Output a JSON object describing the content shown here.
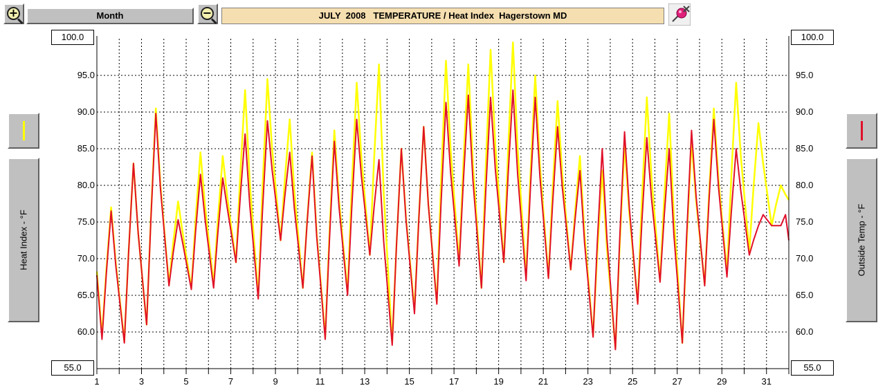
{
  "toolbar": {
    "zoom_in_symbol": "+",
    "zoom_out_symbol": "−",
    "period_label": "Month",
    "title": "JULY  2008   TEMPERATURE / Heat Index  Hagerstown MD"
  },
  "left_axis": {
    "label": "Heat Index - °F",
    "top_value": "100.0",
    "bottom_value": "55.0",
    "swatch_color": "#ffff00"
  },
  "right_axis": {
    "label": "Outside Temp - °F",
    "top_value": "100.0",
    "bottom_value": "55.0",
    "swatch_color": "#e0102a"
  },
  "chart_data": {
    "type": "line",
    "ylim": [
      55,
      100
    ],
    "xlim": [
      1,
      32
    ],
    "grid": true,
    "x_tick_labels": [
      "1",
      "3",
      "5",
      "7",
      "9",
      "11",
      "13",
      "15",
      "17",
      "19",
      "21",
      "23",
      "25",
      "27",
      "29",
      "31"
    ],
    "y_tick_labels": [
      "100.0",
      "95.0",
      "90.0",
      "85.0",
      "80.0",
      "75.0",
      "70.0",
      "65.0",
      "60.0",
      "55.0"
    ],
    "days": [
      1,
      2,
      3,
      4,
      5,
      6,
      7,
      8,
      9,
      10,
      11,
      12,
      13,
      14,
      15,
      16,
      17,
      18,
      19,
      20,
      21,
      22,
      23,
      24,
      25,
      26,
      27,
      28,
      29,
      30,
      31
    ],
    "series": [
      {
        "color": "#ffff00",
        "daily_min": [
          59.5,
          58.7,
          61.0,
          66.5,
          66.0,
          66.5,
          69.5,
          64.8,
          72.5,
          66.0,
          59.3,
          65.5,
          70.5,
          58.5,
          63.0,
          64.0,
          69.5,
          66.0,
          69.5,
          67.5,
          67.5,
          68.5,
          59.5,
          57.8,
          64.0,
          67.0,
          58.5,
          66.5,
          68.0,
          71.0,
          74.5
        ],
        "daily_max": [
          77.0,
          83.0,
          90.5,
          77.8,
          84.5,
          84.0,
          93.0,
          94.5,
          89.0,
          84.5,
          87.5,
          94.0,
          96.5,
          85.0,
          88.0,
          97.0,
          96.5,
          98.5,
          99.5,
          95.0,
          91.5,
          84.0,
          82.0,
          85.5,
          92.0,
          89.8,
          86.0,
          90.5,
          94.0,
          88.5,
          80.0
        ]
      },
      {
        "color": "#e0102a",
        "daily_min": [
          59.0,
          58.5,
          61.0,
          66.3,
          65.8,
          66.0,
          69.5,
          64.5,
          72.5,
          66.0,
          59.0,
          65.0,
          70.5,
          58.2,
          62.5,
          63.8,
          69.0,
          66.0,
          69.5,
          67.0,
          67.3,
          68.5,
          59.3,
          57.6,
          63.8,
          66.8,
          58.5,
          66.3,
          67.5,
          70.5,
          74.5
        ],
        "daily_max": [
          76.5,
          83.0,
          89.8,
          75.3,
          81.5,
          81.0,
          87.0,
          88.8,
          84.5,
          84.0,
          86.0,
          89.0,
          83.5,
          85.0,
          88.0,
          91.3,
          92.3,
          92.0,
          93.0,
          92.0,
          88.0,
          82.0,
          85.0,
          87.3,
          86.5,
          85.0,
          87.5,
          89.0,
          85.0,
          74.5,
          74.5
        ]
      }
    ]
  }
}
